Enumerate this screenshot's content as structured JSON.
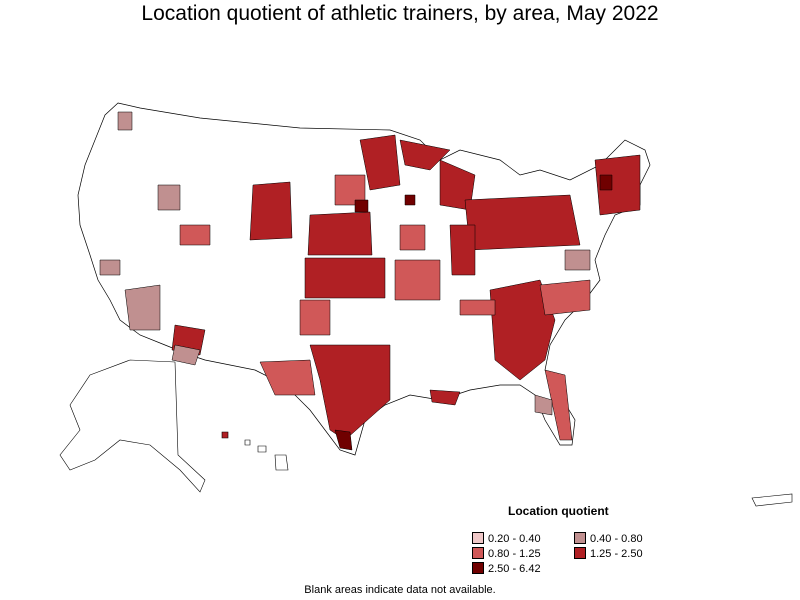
{
  "title": "Location quotient of athletic trainers, by area, May 2022",
  "legend": {
    "title": "Location quotient",
    "items": [
      {
        "label": "0.20 - 0.40",
        "color": "#f0c8c8"
      },
      {
        "label": "0.40 - 0.80",
        "color": "#c09090"
      },
      {
        "label": "0.80 - 1.25",
        "color": "#d05858"
      },
      {
        "label": "1.25 - 2.50",
        "color": "#b02024"
      },
      {
        "label": "2.50 - 6.42",
        "color": "#700000"
      }
    ]
  },
  "footnote": "Blank areas indicate data not available.",
  "colors": {
    "no_data": "#ffffff",
    "border": "#000000"
  }
}
